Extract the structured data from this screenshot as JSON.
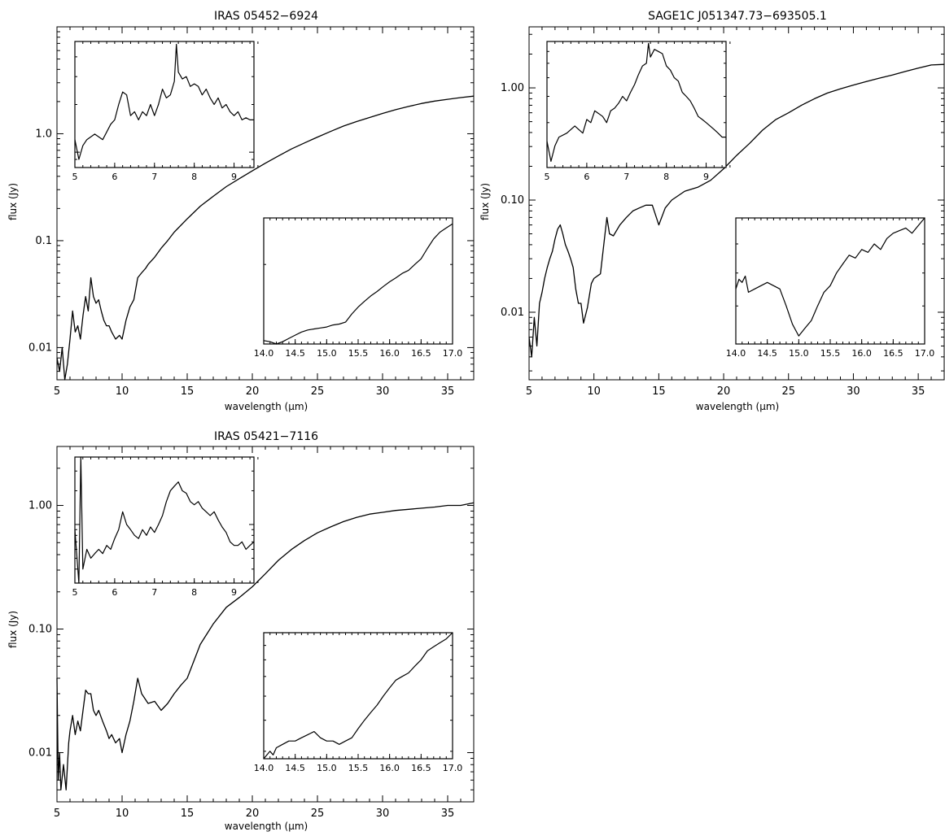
{
  "chart_data": [
    {
      "type": "line",
      "title": "IRAS 05452−6924",
      "xlabel": "wavelength (μm)",
      "ylabel": "flux (Jy)",
      "xlim": [
        5,
        37
      ],
      "ylim": [
        0.005,
        10
      ],
      "yscale": "log",
      "xticks": [
        "5",
        "10",
        "15",
        "20",
        "25",
        "30",
        "35"
      ],
      "yticks": [
        {
          "v": 0.01,
          "label": "0.01"
        },
        {
          "v": 0.1,
          "label": "0.1"
        },
        {
          "v": 1,
          "label": "1.0"
        }
      ],
      "series": [
        {
          "x": [
            5.0,
            5.2,
            5.4,
            5.6,
            5.8,
            6.0,
            6.2,
            6.4,
            6.6,
            6.8,
            7.0,
            7.2,
            7.4,
            7.6,
            7.8,
            8.0,
            8.2,
            8.4,
            8.6,
            8.8,
            9.0,
            9.2,
            9.5,
            9.8,
            10.0,
            10.3,
            10.6,
            10.9,
            11.2,
            11.5,
            11.8,
            12.0,
            12.5,
            13.0,
            13.5,
            14.0,
            15.0,
            16.0,
            17.0,
            18.0,
            19.0,
            20.0,
            21.0,
            22.0,
            23.0,
            24.0,
            25.0,
            26.0,
            27.0,
            28.0,
            29.0,
            30.0,
            31.0,
            32.0,
            33.0,
            34.0,
            35.0,
            36.0,
            37.0
          ],
          "y": [
            0.008,
            0.006,
            0.01,
            0.005,
            0.007,
            0.012,
            0.022,
            0.014,
            0.016,
            0.012,
            0.02,
            0.03,
            0.022,
            0.045,
            0.03,
            0.026,
            0.028,
            0.022,
            0.018,
            0.016,
            0.016,
            0.014,
            0.012,
            0.013,
            0.012,
            0.018,
            0.024,
            0.028,
            0.045,
            0.05,
            0.055,
            0.06,
            0.07,
            0.085,
            0.1,
            0.12,
            0.16,
            0.21,
            0.26,
            0.32,
            0.38,
            0.45,
            0.53,
            0.62,
            0.72,
            0.82,
            0.93,
            1.05,
            1.18,
            1.3,
            1.42,
            1.55,
            1.68,
            1.8,
            1.92,
            2.02,
            2.1,
            2.18,
            2.25
          ]
        }
      ],
      "insets": [
        {
          "xlim": [
            5,
            9.5
          ],
          "ylim": [
            0.008,
            0.05
          ],
          "yscale": "log",
          "xticks": [
            "5",
            "6",
            "7",
            "8",
            "9"
          ],
          "x": [
            5.0,
            5.1,
            5.2,
            5.3,
            5.5,
            5.7,
            5.9,
            6.0,
            6.1,
            6.2,
            6.3,
            6.4,
            6.5,
            6.6,
            6.7,
            6.8,
            6.9,
            7.0,
            7.1,
            7.2,
            7.3,
            7.4,
            7.5,
            7.55,
            7.6,
            7.7,
            7.8,
            7.9,
            8.0,
            8.1,
            8.2,
            8.3,
            8.4,
            8.5,
            8.6,
            8.7,
            8.8,
            8.9,
            9.0,
            9.1,
            9.2,
            9.3,
            9.4,
            9.5
          ],
          "y": [
            0.012,
            0.009,
            0.011,
            0.012,
            0.013,
            0.012,
            0.015,
            0.016,
            0.02,
            0.024,
            0.023,
            0.017,
            0.018,
            0.016,
            0.018,
            0.017,
            0.02,
            0.017,
            0.02,
            0.025,
            0.022,
            0.023,
            0.028,
            0.048,
            0.032,
            0.029,
            0.03,
            0.026,
            0.027,
            0.026,
            0.023,
            0.025,
            0.022,
            0.02,
            0.022,
            0.019,
            0.02,
            0.018,
            0.017,
            0.018,
            0.016,
            0.0165,
            0.016,
            0.016
          ]
        },
        {
          "xlim": [
            14.0,
            17.0
          ],
          "ylim": [
            0.1,
            0.3
          ],
          "yscale": "log",
          "xticks": [
            "14.0",
            "14.5",
            "15.0",
            "15.5",
            "16.0",
            "16.5",
            "17.0"
          ],
          "x": [
            14.0,
            14.1,
            14.2,
            14.3,
            14.4,
            14.5,
            14.6,
            14.7,
            14.8,
            14.9,
            15.0,
            15.1,
            15.2,
            15.3,
            15.4,
            15.5,
            15.6,
            15.7,
            15.8,
            15.9,
            16.0,
            16.1,
            16.2,
            16.3,
            16.4,
            16.5,
            16.6,
            16.7,
            16.8,
            16.9,
            17.0
          ],
          "y": [
            0.103,
            0.102,
            0.1,
            0.102,
            0.105,
            0.108,
            0.111,
            0.113,
            0.114,
            0.115,
            0.116,
            0.118,
            0.119,
            0.121,
            0.13,
            0.138,
            0.145,
            0.152,
            0.158,
            0.165,
            0.172,
            0.178,
            0.185,
            0.19,
            0.2,
            0.21,
            0.23,
            0.25,
            0.265,
            0.275,
            0.285
          ]
        }
      ]
    },
    {
      "type": "line",
      "title": "SAGE1C J051347.73−693505.1",
      "xlabel": "wavelength (μm)",
      "ylabel": "flux (Jy)",
      "xlim": [
        5,
        37
      ],
      "ylim": [
        0.0025,
        3.5
      ],
      "yscale": "log",
      "xticks": [
        "5",
        "10",
        "15",
        "20",
        "25",
        "30",
        "35"
      ],
      "yticks": [
        {
          "v": 0.01,
          "label": "0.01"
        },
        {
          "v": 0.1,
          "label": "0.10"
        },
        {
          "v": 1,
          "label": "1.00"
        }
      ],
      "series": [
        {
          "x": [
            5.0,
            5.2,
            5.4,
            5.6,
            5.8,
            6.0,
            6.2,
            6.4,
            6.6,
            6.8,
            7.0,
            7.2,
            7.4,
            7.6,
            7.8,
            8.0,
            8.2,
            8.4,
            8.6,
            8.8,
            9.0,
            9.2,
            9.5,
            9.8,
            10.0,
            10.5,
            11.0,
            11.2,
            11.5,
            12.0,
            12.5,
            13.0,
            13.5,
            14.0,
            14.5,
            15.0,
            15.5,
            16.0,
            17.0,
            18.0,
            19.0,
            20.0,
            21.0,
            22.0,
            23.0,
            24.0,
            25.0,
            26.0,
            27.0,
            28.0,
            29.0,
            30.0,
            31.0,
            32.0,
            33.0,
            34.0,
            35.0,
            36.0,
            37.0
          ],
          "y": [
            0.006,
            0.004,
            0.009,
            0.005,
            0.012,
            0.015,
            0.02,
            0.025,
            0.03,
            0.035,
            0.045,
            0.055,
            0.06,
            0.05,
            0.04,
            0.035,
            0.03,
            0.025,
            0.016,
            0.012,
            0.012,
            0.008,
            0.011,
            0.018,
            0.02,
            0.022,
            0.07,
            0.05,
            0.048,
            0.06,
            0.07,
            0.08,
            0.085,
            0.09,
            0.09,
            0.06,
            0.085,
            0.1,
            0.12,
            0.13,
            0.15,
            0.19,
            0.25,
            0.32,
            0.42,
            0.52,
            0.6,
            0.7,
            0.8,
            0.9,
            0.98,
            1.06,
            1.14,
            1.22,
            1.3,
            1.4,
            1.5,
            1.6,
            1.62
          ]
        }
      ],
      "insets": [
        {
          "xlim": [
            5,
            9.5
          ],
          "ylim": [
            0.01,
            0.07
          ],
          "yscale": "log",
          "xticks": [
            "5",
            "6",
            "7",
            "8",
            "9"
          ],
          "x": [
            5.0,
            5.1,
            5.2,
            5.3,
            5.5,
            5.7,
            5.9,
            6.0,
            6.1,
            6.2,
            6.3,
            6.4,
            6.5,
            6.6,
            6.7,
            6.8,
            6.9,
            7.0,
            7.1,
            7.2,
            7.3,
            7.4,
            7.5,
            7.55,
            7.6,
            7.7,
            7.8,
            7.9,
            8.0,
            8.1,
            8.2,
            8.3,
            8.4,
            8.5,
            8.6,
            8.7,
            8.8,
            8.9,
            9.0,
            9.1,
            9.2,
            9.3,
            9.4,
            9.5
          ],
          "y": [
            0.015,
            0.011,
            0.014,
            0.016,
            0.017,
            0.019,
            0.017,
            0.021,
            0.02,
            0.024,
            0.023,
            0.022,
            0.02,
            0.024,
            0.025,
            0.027,
            0.03,
            0.028,
            0.032,
            0.036,
            0.042,
            0.048,
            0.05,
            0.068,
            0.055,
            0.062,
            0.06,
            0.058,
            0.048,
            0.045,
            0.04,
            0.038,
            0.032,
            0.03,
            0.028,
            0.025,
            0.022,
            0.021,
            0.02,
            0.019,
            0.018,
            0.017,
            0.016,
            0.016
          ]
        },
        {
          "xlim": [
            14.0,
            17.0
          ],
          "ylim": [
            0.06,
            0.1
          ],
          "yscale": "log",
          "xticks": [
            "14.0",
            "14.5",
            "15.0",
            "15.5",
            "16.0",
            "16.5",
            "17.0"
          ],
          "x": [
            14.0,
            14.05,
            14.1,
            14.15,
            14.2,
            14.3,
            14.4,
            14.5,
            14.6,
            14.7,
            14.8,
            14.9,
            15.0,
            15.1,
            15.2,
            15.3,
            15.4,
            15.5,
            15.6,
            15.7,
            15.8,
            15.9,
            16.0,
            16.1,
            16.2,
            16.3,
            16.4,
            16.5,
            16.6,
            16.7,
            16.8,
            16.9,
            17.0
          ],
          "y": [
            0.075,
            0.078,
            0.077,
            0.079,
            0.074,
            0.075,
            0.076,
            0.077,
            0.076,
            0.075,
            0.07,
            0.065,
            0.062,
            0.064,
            0.066,
            0.07,
            0.074,
            0.076,
            0.08,
            0.083,
            0.086,
            0.085,
            0.088,
            0.087,
            0.09,
            0.088,
            0.092,
            0.094,
            0.095,
            0.096,
            0.094,
            0.097,
            0.1
          ]
        }
      ]
    },
    {
      "type": "line",
      "title": "IRAS 05421−7116",
      "xlabel": "wavelength (μm)",
      "ylabel": "flux (Jy)",
      "xlim": [
        5,
        37
      ],
      "ylim": [
        0.004,
        3.0
      ],
      "yscale": "log",
      "xticks": [
        "5",
        "10",
        "15",
        "20",
        "25",
        "30",
        "35"
      ],
      "yticks": [
        {
          "v": 0.01,
          "label": "0.01"
        },
        {
          "v": 0.1,
          "label": "0.10"
        },
        {
          "v": 1,
          "label": "1.00"
        }
      ],
      "series": [
        {
          "x": [
            5.0,
            5.1,
            5.2,
            5.3,
            5.5,
            5.7,
            5.9,
            6.0,
            6.2,
            6.4,
            6.6,
            6.8,
            7.0,
            7.2,
            7.4,
            7.6,
            7.8,
            8.0,
            8.2,
            8.5,
            8.8,
            9.0,
            9.2,
            9.5,
            9.8,
            10.0,
            10.3,
            10.6,
            10.9,
            11.2,
            11.5,
            12.0,
            12.5,
            13.0,
            13.5,
            14.0,
            14.5,
            15.0,
            16.0,
            17.0,
            18.0,
            19.0,
            20.0,
            21.0,
            22.0,
            23.0,
            24.0,
            25.0,
            26.0,
            27.0,
            28.0,
            29.0,
            30.0,
            31.0,
            32.0,
            33.0,
            34.0,
            35.0,
            36.0,
            37.0
          ],
          "y": [
            0.04,
            0.006,
            0.01,
            0.005,
            0.008,
            0.005,
            0.012,
            0.015,
            0.02,
            0.014,
            0.018,
            0.015,
            0.022,
            0.032,
            0.03,
            0.03,
            0.022,
            0.02,
            0.022,
            0.018,
            0.015,
            0.013,
            0.014,
            0.012,
            0.013,
            0.01,
            0.014,
            0.018,
            0.026,
            0.04,
            0.03,
            0.025,
            0.026,
            0.022,
            0.025,
            0.03,
            0.035,
            0.04,
            0.075,
            0.11,
            0.15,
            0.18,
            0.22,
            0.28,
            0.36,
            0.44,
            0.52,
            0.6,
            0.67,
            0.74,
            0.8,
            0.85,
            0.88,
            0.91,
            0.93,
            0.95,
            0.97,
            1.0,
            1.0,
            1.05
          ]
        }
      ],
      "insets": [
        {
          "xlim": [
            5,
            9.5
          ],
          "ylim": [
            0.003,
            0.04
          ],
          "yscale": "log",
          "xticks": [
            "5",
            "6",
            "7",
            "8",
            "9"
          ],
          "x": [
            5.0,
            5.1,
            5.15,
            5.2,
            5.3,
            5.4,
            5.5,
            5.6,
            5.7,
            5.8,
            5.9,
            6.0,
            6.1,
            6.2,
            6.3,
            6.4,
            6.5,
            6.6,
            6.7,
            6.8,
            6.9,
            7.0,
            7.1,
            7.2,
            7.3,
            7.4,
            7.5,
            7.6,
            7.7,
            7.8,
            7.9,
            8.0,
            8.1,
            8.2,
            8.3,
            8.4,
            8.5,
            8.6,
            8.7,
            8.8,
            8.9,
            9.0,
            9.1,
            9.2,
            9.3,
            9.4,
            9.5
          ],
          "y": [
            0.009,
            0.003,
            0.04,
            0.004,
            0.006,
            0.005,
            0.0055,
            0.006,
            0.0055,
            0.0065,
            0.006,
            0.0075,
            0.009,
            0.013,
            0.01,
            0.009,
            0.008,
            0.0075,
            0.009,
            0.008,
            0.0095,
            0.0085,
            0.01,
            0.012,
            0.016,
            0.02,
            0.022,
            0.024,
            0.02,
            0.019,
            0.016,
            0.015,
            0.016,
            0.014,
            0.013,
            0.012,
            0.013,
            0.011,
            0.0095,
            0.0085,
            0.007,
            0.0065,
            0.0065,
            0.007,
            0.006,
            0.0065,
            0.007
          ]
        },
        {
          "xlim": [
            14.0,
            17.0
          ],
          "ylim": [
            0.028,
            0.09
          ],
          "yscale": "log",
          "xticks": [
            "14.0",
            "14.5",
            "15.0",
            "15.5",
            "16.0",
            "16.5",
            "17.0"
          ],
          "x": [
            14.0,
            14.05,
            14.1,
            14.15,
            14.2,
            14.3,
            14.4,
            14.5,
            14.6,
            14.7,
            14.8,
            14.9,
            15.0,
            15.1,
            15.2,
            15.3,
            15.4,
            15.5,
            15.6,
            15.7,
            15.8,
            15.9,
            16.0,
            16.1,
            16.2,
            16.3,
            16.4,
            16.5,
            16.6,
            16.7,
            16.8,
            16.9,
            17.0
          ],
          "y": [
            0.028,
            0.029,
            0.03,
            0.029,
            0.031,
            0.032,
            0.033,
            0.033,
            0.034,
            0.035,
            0.036,
            0.034,
            0.033,
            0.033,
            0.032,
            0.033,
            0.034,
            0.037,
            0.04,
            0.043,
            0.046,
            0.05,
            0.054,
            0.058,
            0.06,
            0.062,
            0.066,
            0.07,
            0.076,
            0.079,
            0.082,
            0.085,
            0.09
          ]
        }
      ]
    }
  ]
}
